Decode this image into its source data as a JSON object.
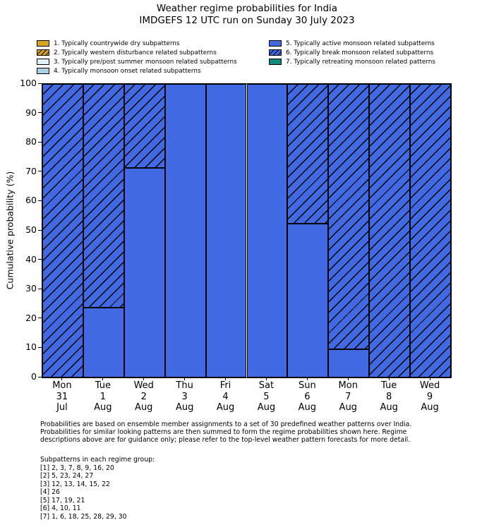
{
  "chart_data": {
    "type": "bar",
    "stacked": true,
    "title": "Weather regime probabilities for India",
    "subtitle": "IMDGEFS 12 UTC run on Sunday 30 July 2023",
    "ylabel": "Cumulative probability (%)",
    "ylim": [
      0,
      100
    ],
    "yticks": [
      0,
      10,
      20,
      30,
      40,
      50,
      60,
      70,
      80,
      90,
      100
    ],
    "grid": false,
    "legend_position": "top",
    "categories": [
      [
        "Mon",
        "31",
        "Jul"
      ],
      [
        "Tue",
        "1",
        "Aug"
      ],
      [
        "Wed",
        "2",
        "Aug"
      ],
      [
        "Thu",
        "3",
        "Aug"
      ],
      [
        "Fri",
        "4",
        "Aug"
      ],
      [
        "Sat",
        "5",
        "Aug"
      ],
      [
        "Sun",
        "6",
        "Aug"
      ],
      [
        "Mon",
        "7",
        "Aug"
      ],
      [
        "Tue",
        "8",
        "Aug"
      ],
      [
        "Wed",
        "9",
        "Aug"
      ]
    ],
    "series": [
      {
        "name": "5. Typically active monsoon related subpatterns",
        "color": "#4169E1",
        "hatch": false,
        "values": [
          0,
          23.8,
          71.4,
          100,
          100,
          100,
          52.4,
          9.5,
          0,
          0
        ]
      },
      {
        "name": "6. Typically break monsoon related subpatterns",
        "color": "#4169E1",
        "hatch": true,
        "values": [
          100,
          76.2,
          28.6,
          0,
          0,
          0,
          47.6,
          90.5,
          100,
          100
        ]
      }
    ],
    "legend": [
      {
        "label": "1. Typically countrywide dry subpatterns",
        "color": "#DAA520",
        "hatch": false
      },
      {
        "label": "2. Typically western disturbance related subpatterns",
        "color": "#DAA520",
        "hatch": true
      },
      {
        "label": "3. Typically pre/post summer monsoon related subpatterns",
        "color": "#DFF2F8",
        "hatch": false
      },
      {
        "label": "4. Typically monsoon onset related subpatterns",
        "color": "#A9CFE0",
        "hatch": false
      },
      {
        "label": "5. Typically active monsoon related subpatterns",
        "color": "#4169E1",
        "hatch": false
      },
      {
        "label": "6. Typically break monsoon related subpatterns",
        "color": "#4169E1",
        "hatch": true
      },
      {
        "label": "7. Typically retreating monsoon related patterns",
        "color": "#12897E",
        "hatch": false
      }
    ],
    "legend_columns": [
      [
        0,
        1,
        2,
        3
      ],
      [
        4,
        5,
        6
      ]
    ],
    "colors": {
      "bar_edge": "#000000",
      "hatch_line": "#000000",
      "axis": "#000000"
    }
  },
  "footer": {
    "lines": [
      "Probabilities are based on ensemble member assignments to a set of 30 predefined weather patterns over India.",
      "Probabilities for similar looking patterns are then summed to form the regime probabilities shown here. Regime",
      "descriptions above are for guidance only; please refer to the top-level weather pattern forecasts for more detail."
    ]
  },
  "subpatterns": {
    "heading": "Subpatterns in each regime group:",
    "lines": [
      "[1] 2, 3, 7, 8, 9, 16, 20",
      "[2] 5, 23, 24, 27",
      "[3] 12, 13, 14, 15, 22",
      "[4] 26",
      "[5] 17, 19, 21",
      "[6] 4, 10, 11",
      "[7] 1, 6, 18, 25, 28, 29, 30"
    ]
  }
}
